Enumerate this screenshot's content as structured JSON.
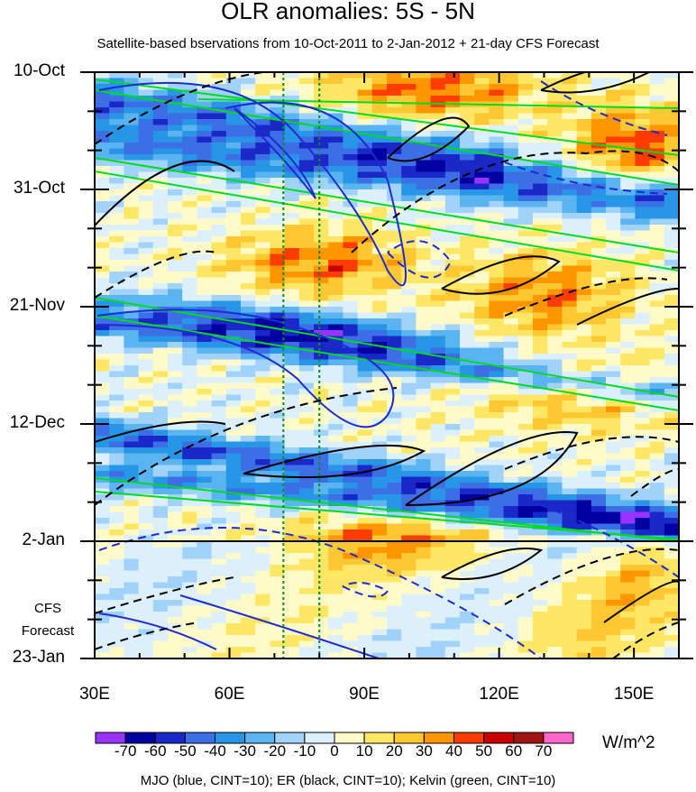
{
  "chart_data": {
    "type": "heatmap",
    "title": "OLR anomalies: 5S - 5N",
    "subtitle": "Satellite-based bservations from 10-Oct-2011 to 2-Jan-2012 + 21-day CFS Forecast",
    "x_axis": {
      "range_deg": [
        30,
        160
      ],
      "ticks": [
        {
          "value": 30,
          "label": "30E"
        },
        {
          "value": 60,
          "label": "60E"
        },
        {
          "value": 90,
          "label": "90E"
        },
        {
          "value": 120,
          "label": "120E"
        },
        {
          "value": 150,
          "label": "150E"
        }
      ]
    },
    "y_axis": {
      "range_days": [
        0,
        105
      ],
      "ticks": [
        {
          "day": 0,
          "label": "10-Oct"
        },
        {
          "day": 21,
          "label": "31-Oct"
        },
        {
          "day": 42,
          "label": "21-Nov"
        },
        {
          "day": 63,
          "label": "12-Dec"
        },
        {
          "day": 84,
          "label": "2-Jan"
        },
        {
          "day": 105,
          "label": "23-Jan"
        }
      ]
    },
    "forecast_label": [
      "CFS",
      "Forecast"
    ],
    "forecast_start_day": 84,
    "reference_longitudes": [
      72,
      80
    ],
    "colorbar": {
      "levels": [
        -70,
        -60,
        -50,
        -40,
        -30,
        -20,
        -10,
        0,
        10,
        20,
        30,
        40,
        50,
        60,
        70
      ],
      "labels": [
        "-70",
        "-60",
        "-50",
        "-40",
        "-30",
        "-20",
        "-10",
        "0",
        "10",
        "20",
        "30",
        "40",
        "50",
        "60",
        "70"
      ],
      "colors": [
        "#9933ff",
        "#0000a0",
        "#1a28c8",
        "#3c6ee6",
        "#2896e6",
        "#5ab4f0",
        "#a0d2fa",
        "#dcf0fc",
        "#fffac8",
        "#ffe664",
        "#ffc832",
        "#ff9600",
        "#ff3c00",
        "#c80000",
        "#a01414",
        "#ff66cc"
      ],
      "units": "W/m^2"
    },
    "series": [
      {
        "name": "MJO",
        "color": "#1e2ad2",
        "cint": 10
      },
      {
        "name": "ER",
        "color": "#000000",
        "cint": 10
      },
      {
        "name": "Kelvin",
        "color": "#00dc1e",
        "cint": 10
      }
    ],
    "footer": "MJO (blue, CINT=10); ER (black, CINT=10); Kelvin (green, CINT=10)"
  }
}
